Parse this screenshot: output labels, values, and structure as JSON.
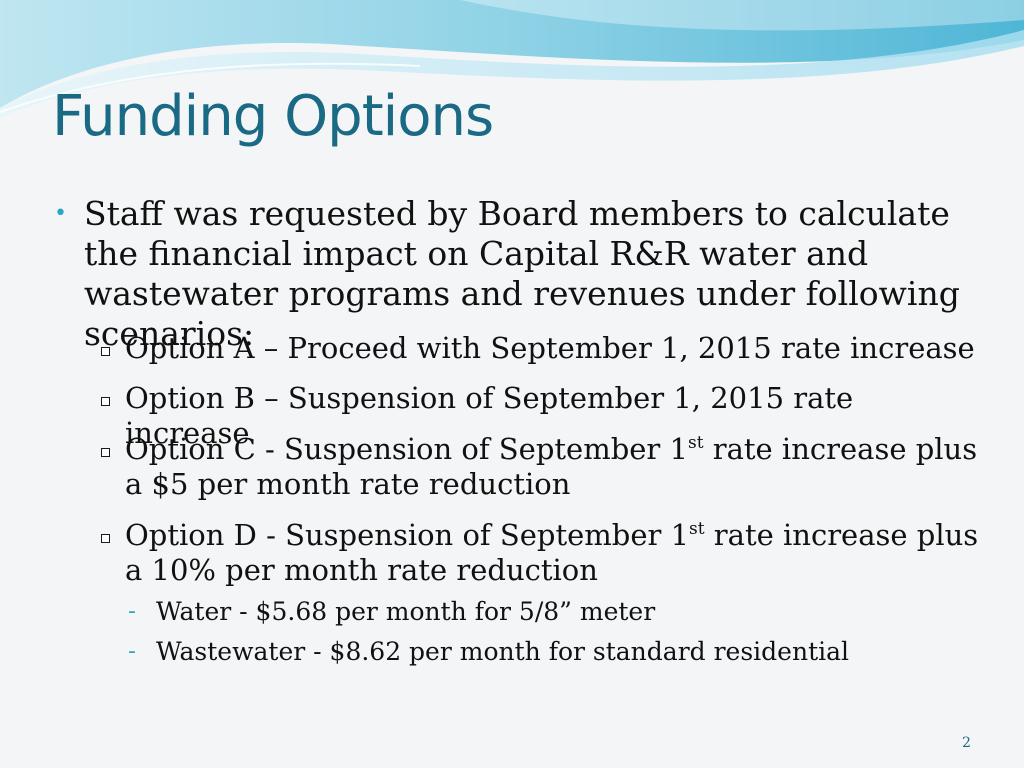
{
  "slide": {
    "title": "Funding Options",
    "intro": "Staff was requested by Board members to calculate the financial impact on Capital R&R water and wastewater programs and revenues under following scenarios:",
    "options": [
      {
        "text": "Option A – Proceed with September 1, 2015 rate increase"
      },
      {
        "text": "Option B – Suspension of September 1, 2015 rate increase"
      },
      {
        "text_before": "Option C - Suspension of September 1",
        "sup": "st",
        "text_after": " rate increase plus a $5 per month rate reduction"
      },
      {
        "text_before": "Option D - Suspension of September 1",
        "sup": "st",
        "text_after": " rate increase plus a 10% per month rate reduction"
      }
    ],
    "sub_items": [
      "Water - $5.68 per month for 5/8” meter",
      "Wastewater - $8.62 per month for standard residential"
    ],
    "page_number": "2"
  },
  "colors": {
    "title": "#1a6a86",
    "accent": "#2aa6c9",
    "background": "#f4f5f6"
  }
}
